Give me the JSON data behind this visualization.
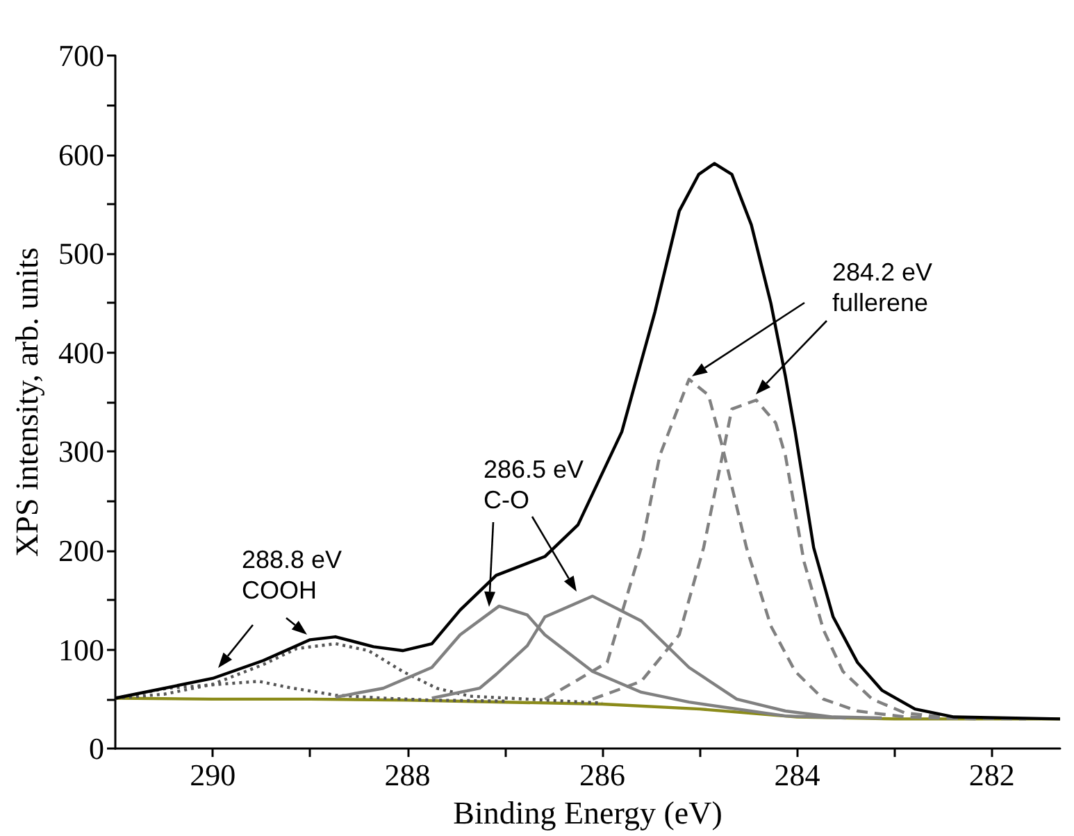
{
  "chart_data": {
    "type": "line",
    "xlabel": "Binding Energy (eV)",
    "ylabel": "XPS intensity, arb. units",
    "xlim": [
      291,
      281.3
    ],
    "ylim": [
      0,
      700
    ],
    "xticks": [
      290,
      {
        "value": 289,
        "label": null
      },
      288,
      {
        "value": 287,
        "label": null
      },
      286,
      {
        "value": 285,
        "label": null
      },
      284,
      {
        "value": 283,
        "label": null
      },
      282
    ],
    "yticks": [
      0,
      {
        "value": 50,
        "label": null
      },
      100,
      {
        "value": 150,
        "label": null
      },
      200,
      {
        "value": 250,
        "label": null
      },
      300,
      {
        "value": 350,
        "label": null
      },
      400,
      {
        "value": 450,
        "label": null
      },
      500,
      {
        "value": 550,
        "label": null
      },
      600,
      {
        "value": 650,
        "label": null
      },
      700
    ],
    "grid": false,
    "marker": "none",
    "series": [
      {
        "color": "#8b8b1a",
        "line_style": "solid",
        "x": [
          291,
          290,
          289,
          288,
          287,
          286,
          285,
          284,
          283,
          282,
          281.3
        ],
        "values": [
          51,
          50,
          50,
          49,
          47,
          45,
          40,
          32,
          30,
          30,
          30
        ]
      },
      {
        "color": "#555555",
        "line_style": "dotted",
        "x": [
          291,
          290.47,
          289.53,
          289.23,
          288.74,
          288.25,
          287.75,
          287
        ],
        "values": [
          51,
          61,
          68,
          62,
          54,
          51,
          49,
          48
        ]
      },
      {
        "color": "#555555",
        "line_style": "dotted",
        "x": [
          291,
          290.5,
          290,
          289.48,
          289.14,
          288.74,
          288.4,
          288.05,
          287.7,
          287.36,
          286.77,
          286
        ],
        "values": [
          51,
          55,
          65,
          85,
          101,
          106,
          99,
          78,
          61,
          53,
          50,
          46
        ]
      },
      {
        "color": "#808080",
        "line_style": "solid",
        "x": [
          288.74,
          288.25,
          287.75,
          287.46,
          287.06,
          286.77,
          286.59,
          286.1,
          285.6,
          285.11,
          284.12,
          283.5
        ],
        "values": [
          52,
          61,
          82,
          115,
          144,
          135,
          115,
          78,
          57,
          47,
          33,
          31
        ]
      },
      {
        "color": "#808080",
        "line_style": "solid",
        "x": [
          287.75,
          287.26,
          287.09,
          286.77,
          286.59,
          286.1,
          285.6,
          285.11,
          284.62,
          284.12,
          283.63,
          283.13
        ],
        "values": [
          51,
          61,
          75,
          104,
          133,
          154,
          129,
          82,
          50,
          38,
          32,
          31
        ]
      },
      {
        "color": "#808080",
        "line_style": "dashed",
        "x": [
          286.59,
          285.95,
          285.6,
          285.41,
          285.11,
          284.91,
          284.77,
          284.52,
          284.27,
          284.02,
          283.73,
          283.38,
          282.89,
          282.15
        ],
        "values": [
          50,
          87,
          203,
          296,
          373,
          357,
          306,
          203,
          124,
          78,
          50,
          38,
          32,
          30
        ]
      },
      {
        "color": "#808080",
        "line_style": "dashed",
        "x": [
          286.1,
          285.6,
          285.21,
          284.96,
          284.67,
          284.42,
          284.22,
          284.12,
          283.93,
          283.73,
          283.53,
          283.23,
          282.89,
          282.39,
          281.65
        ],
        "values": [
          50,
          68,
          115,
          203,
          343,
          352,
          329,
          296,
          189,
          120,
          78,
          50,
          36,
          31,
          30
        ]
      },
      {
        "color": "#000000",
        "line_style": "solid",
        "x": [
          291,
          290,
          289.48,
          289,
          288.74,
          288.35,
          288.05,
          287.75,
          287.46,
          287.09,
          286.59,
          286.25,
          285.8,
          285.46,
          285.21,
          285.01,
          284.85,
          284.67,
          284.47,
          284.27,
          284.12,
          284.02,
          283.83,
          283.63,
          283.38,
          283.13,
          282.79,
          282.39,
          281.3
        ],
        "values": [
          51,
          71,
          89,
          110,
          113,
          103,
          99,
          106,
          140,
          175,
          194,
          226,
          320,
          441,
          543,
          580,
          591,
          580,
          529,
          450,
          376,
          320,
          203,
          133,
          87,
          59,
          40,
          32,
          30
        ]
      }
    ],
    "annotations": [
      "288.8 eV\nCOOH",
      "286.5 eV\nC-O",
      "284.2 eV\nfullerene"
    ]
  }
}
